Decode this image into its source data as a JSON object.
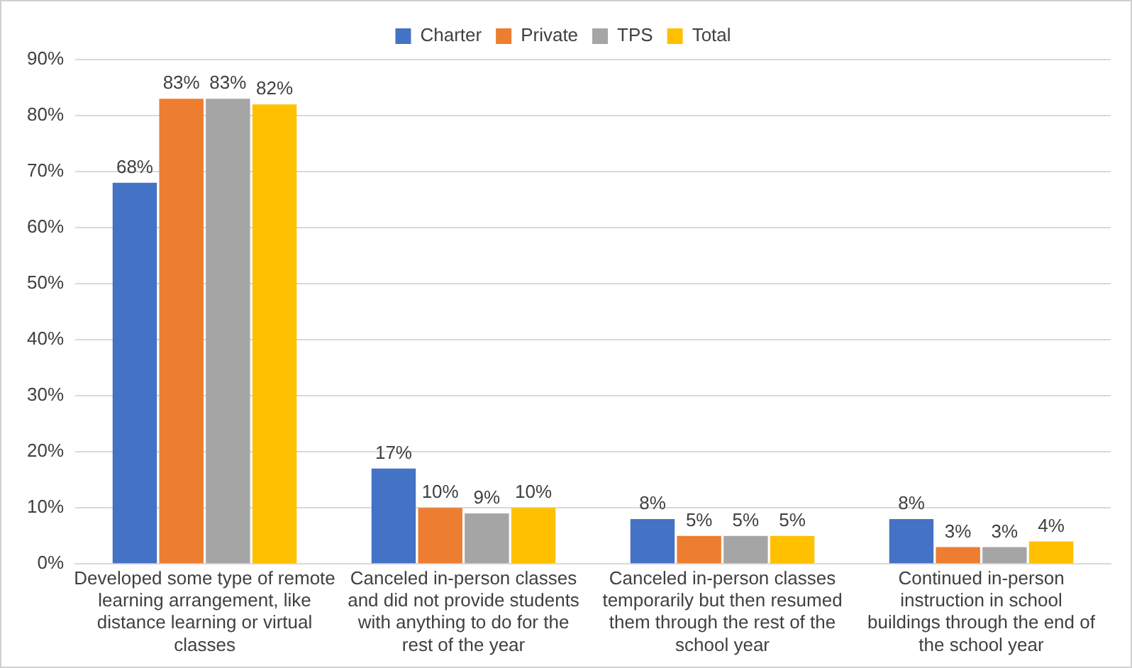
{
  "chart_data": {
    "type": "bar",
    "categories": [
      "Developed some type of remote learning arrangement, like distance learning or virtual classes",
      "Canceled in-person classes and did not provide students with anything to do for the rest of the year",
      "Canceled in-person classes temporarily but then resumed them through the rest of the school year",
      "Continued in-person instruction in school buildings through the end of the school year"
    ],
    "series": [
      {
        "name": "Charter",
        "color": "#4472c4",
        "values": [
          68,
          17,
          8,
          8
        ],
        "value_labels": [
          "68%",
          "17%",
          "8%",
          "8%"
        ]
      },
      {
        "name": "Private",
        "color": "#ed7d31",
        "values": [
          83,
          10,
          5,
          3
        ],
        "value_labels": [
          "83%",
          "10%",
          "5%",
          "3%"
        ]
      },
      {
        "name": "TPS",
        "color": "#a5a5a5",
        "values": [
          83,
          9,
          5,
          3
        ],
        "value_labels": [
          "83%",
          "9%",
          "5%",
          "3%"
        ]
      },
      {
        "name": "Total",
        "color": "#ffc000",
        "values": [
          82,
          10,
          5,
          4
        ],
        "value_labels": [
          "82%",
          "10%",
          "5%",
          "4%"
        ]
      }
    ],
    "ylim": [
      0,
      90
    ],
    "yticks": [
      {
        "value": 0,
        "label": "0%"
      },
      {
        "value": 10,
        "label": "10%"
      },
      {
        "value": 20,
        "label": "20%"
      },
      {
        "value": 30,
        "label": "30%"
      },
      {
        "value": 40,
        "label": "40%"
      },
      {
        "value": 50,
        "label": "50%"
      },
      {
        "value": 60,
        "label": "60%"
      },
      {
        "value": 70,
        "label": "70%"
      },
      {
        "value": 80,
        "label": "80%"
      },
      {
        "value": 90,
        "label": "90%"
      }
    ],
    "grid": "y",
    "legend": "top"
  }
}
